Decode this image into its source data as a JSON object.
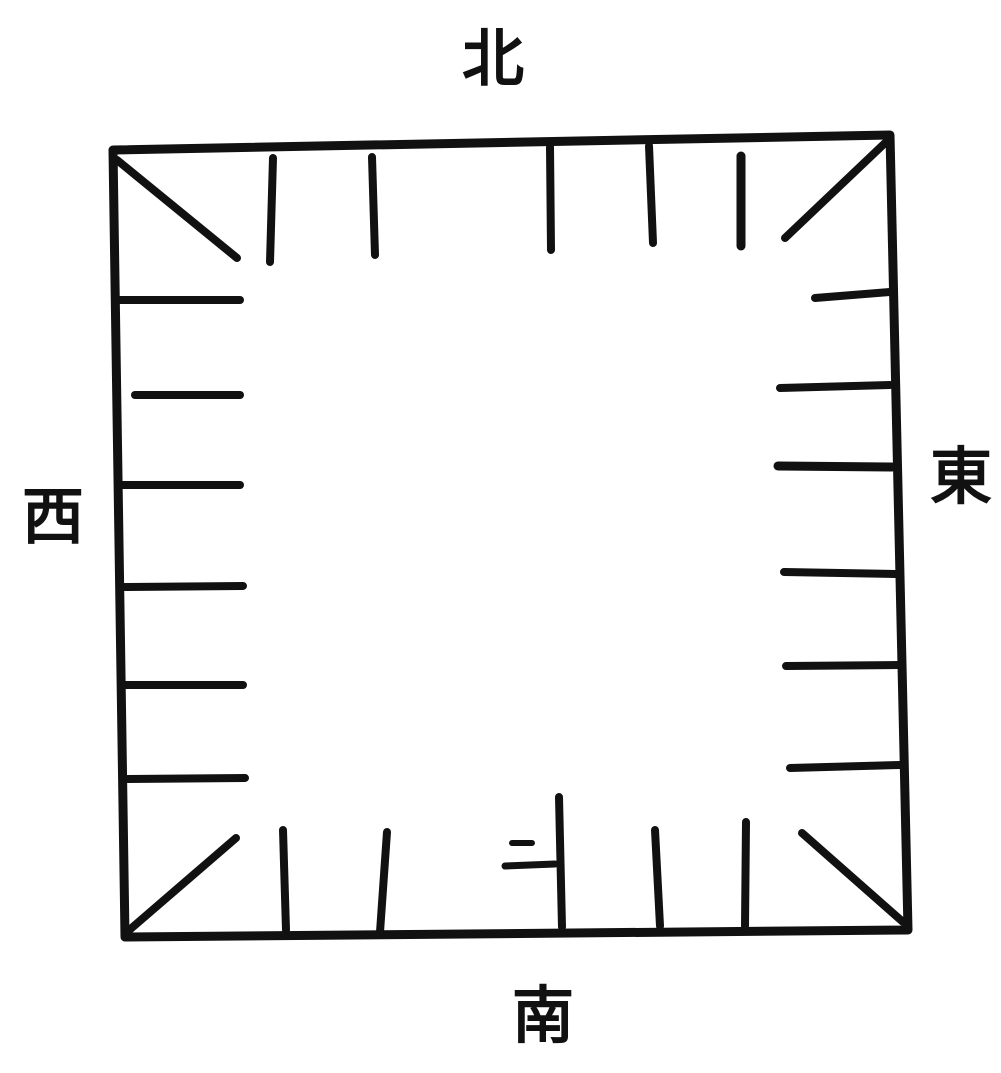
{
  "labels": {
    "north": "北",
    "south": "南",
    "west": "西",
    "east": "東"
  },
  "colors": {
    "ink": "#111111",
    "paper": "#ffffff"
  }
}
